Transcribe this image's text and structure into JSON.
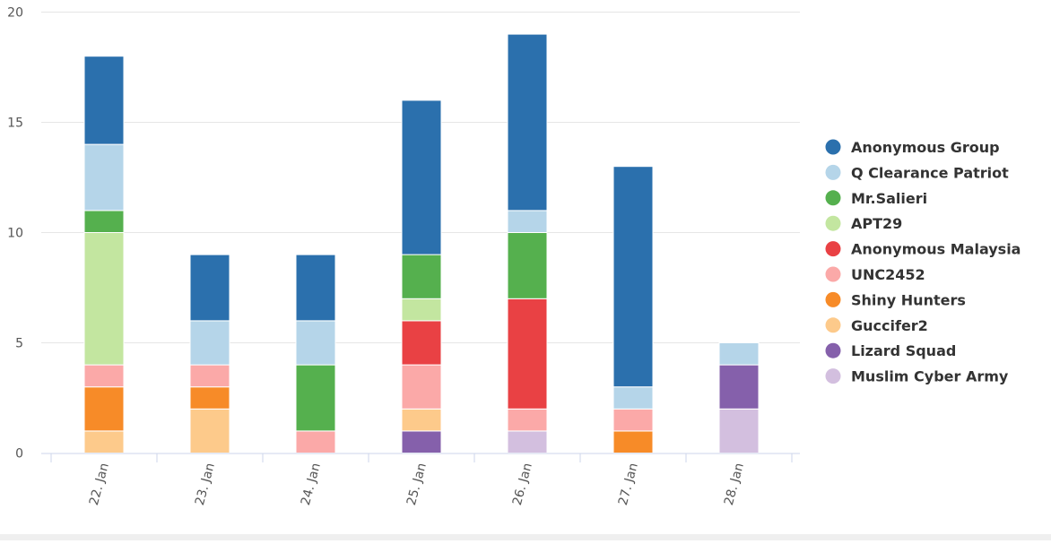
{
  "chart_data": {
    "type": "bar",
    "stacked": true,
    "categories": [
      "22. Jan",
      "23. Jan",
      "24. Jan",
      "25. Jan",
      "26. Jan",
      "27. Jan",
      "28. Jan"
    ],
    "ylim": [
      0,
      20
    ],
    "yticks": [
      0,
      5,
      10,
      15,
      20
    ],
    "grid": true,
    "legend_position": "right",
    "series": [
      {
        "name": "Muslim Cyber Army",
        "color": "#d3bfdf",
        "values": [
          0,
          0,
          0,
          0,
          1,
          0,
          2
        ]
      },
      {
        "name": "Lizard Squad",
        "color": "#8560ab",
        "values": [
          0,
          0,
          0,
          1,
          0,
          0,
          2
        ]
      },
      {
        "name": "Guccifer2",
        "color": "#fdca8b",
        "values": [
          1,
          2,
          0,
          1,
          0,
          0,
          0
        ]
      },
      {
        "name": "Shiny Hunters",
        "color": "#f78b28",
        "values": [
          2,
          1,
          0,
          0,
          0,
          1,
          0
        ]
      },
      {
        "name": "UNC2452",
        "color": "#fba9a8",
        "values": [
          1,
          1,
          1,
          2,
          1,
          1,
          0
        ]
      },
      {
        "name": "Anonymous Malaysia",
        "color": "#e94144",
        "values": [
          0,
          0,
          0,
          2,
          5,
          0,
          0
        ]
      },
      {
        "name": "APT29",
        "color": "#c3e6a0",
        "values": [
          6,
          0,
          0,
          1,
          0,
          0,
          0
        ]
      },
      {
        "name": "Mr.Salieri",
        "color": "#55b04e",
        "values": [
          1,
          0,
          3,
          2,
          3,
          0,
          0
        ]
      },
      {
        "name": "Q Clearance Patriot",
        "color": "#b5d5e9",
        "values": [
          3,
          2,
          2,
          0,
          1,
          1,
          1
        ]
      },
      {
        "name": "Anonymous Group",
        "color": "#2b70ad",
        "values": [
          4,
          3,
          3,
          7,
          8,
          10,
          0
        ]
      }
    ],
    "legend_order": [
      "Anonymous Group",
      "Q Clearance Patriot",
      "Mr.Salieri",
      "APT29",
      "Anonymous Malaysia",
      "UNC2452",
      "Shiny Hunters",
      "Guccifer2",
      "Lizard Squad",
      "Muslim Cyber Army"
    ]
  }
}
